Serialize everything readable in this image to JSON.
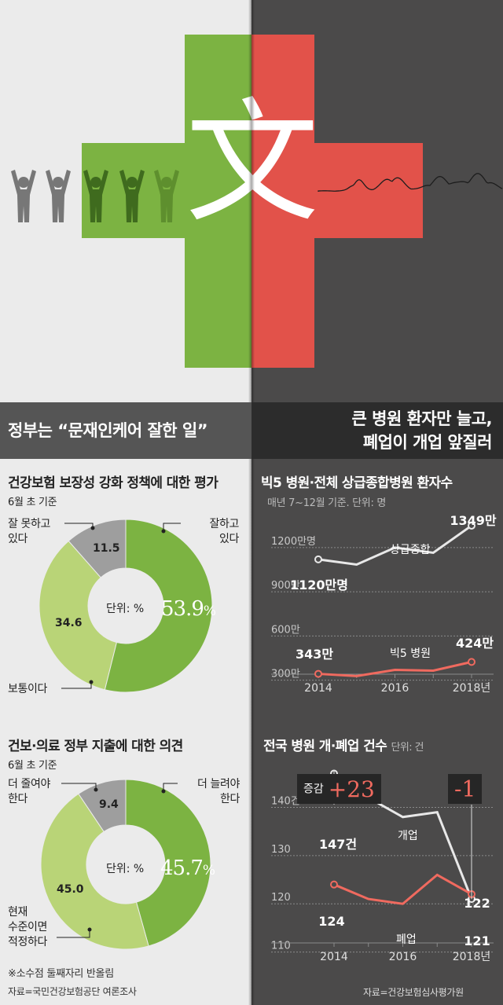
{
  "headline_left": "정부는 “문재인케어 잘한 일”",
  "headline_right": [
    "큰 병원 환자만 늘고,",
    "폐업이 개업 앞질러"
  ],
  "hero_char": "文",
  "colors": {
    "green": "#7cb342",
    "light_green": "#b9d477",
    "gray": "#9e9e9e",
    "red": "#e2524a",
    "line_white": "#e8e8e8",
    "line_red": "#f06a5f"
  },
  "donut1": {
    "title": "건강보험 보장성 강화 정책에 대한 평가",
    "subtitle": "6월 초 기준",
    "unit": "단위: %",
    "big_value": "53.9",
    "big_suffix": "%",
    "segments": [
      {
        "label": "잘하고\n있다",
        "value": 53.9,
        "display": "53.9"
      },
      {
        "label": "보통이다",
        "value": 34.6,
        "display": "34.6"
      },
      {
        "label": "잘 못하고\n있다",
        "value": 11.5,
        "display": "11.5"
      }
    ]
  },
  "donut2": {
    "title": "건보·의료 정부 지출에 대한 의견",
    "subtitle": "6월 초 기준",
    "unit": "단위: %",
    "big_value": "45.7",
    "big_suffix": "%",
    "segments": [
      {
        "label": "더 늘려야\n한다",
        "value": 45.7,
        "display": "45.7"
      },
      {
        "label": "현재\n수준이면\n적정하다",
        "value": 45.0,
        "display": "45.0"
      },
      {
        "label": "더 줄여야\n한다",
        "value": 9.4,
        "display": "9.4"
      }
    ]
  },
  "footnote": "※소수점 둘째자리 반올림",
  "source_left": "자료=국민건강보험공단 여론조사",
  "source_right": "자료=건강보험심사평가원",
  "chart_data": [
    {
      "type": "pie",
      "title": "건강보험 보장성 강화 정책에 대한 평가",
      "subtitle": "6월 초 기준",
      "unit": "단위: %",
      "categories": [
        "잘하고 있다",
        "보통이다",
        "잘 못하고 있다"
      ],
      "values": [
        53.9,
        34.6,
        11.5
      ]
    },
    {
      "type": "pie",
      "title": "건보·의료 정부 지출에 대한 의견",
      "subtitle": "6월 초 기준",
      "unit": "단위: %",
      "categories": [
        "더 늘려야 한다",
        "현재 수준이면 적정하다",
        "더 줄여야 한다"
      ],
      "values": [
        45.7,
        45.0,
        9.4
      ]
    },
    {
      "type": "line",
      "title": "빅5 병원·전체 상급종합병원 환자수",
      "subtitle": "매년 7~12월 기준. 단위: 명",
      "x": [
        2014,
        2015,
        2016,
        2017,
        2018
      ],
      "xticks": [
        "2014",
        "2016",
        "2018년"
      ],
      "yticks": [
        "1200만명",
        "900만",
        "600만",
        "300만"
      ],
      "ylim": [
        250,
        1450
      ],
      "series": [
        {
          "name": "상급종합",
          "values": [
            1120,
            1085,
            1200,
            1165,
            1349
          ],
          "labels": {
            "0": "1120만명",
            "4": "1349만"
          }
        },
        {
          "name": "빅5 병원",
          "values": [
            343,
            328,
            370,
            365,
            424
          ],
          "labels": {
            "0": "343만",
            "4": "424만"
          }
        }
      ]
    },
    {
      "type": "line",
      "title": "전국 병원 개·폐업 건수",
      "unit": "단위: 건",
      "x": [
        2014,
        2015,
        2016,
        2017,
        2018
      ],
      "xticks": [
        "2014",
        "2016",
        "2018년"
      ],
      "yticks": [
        "140건",
        "130",
        "120",
        "110"
      ],
      "ylim": [
        107,
        151
      ],
      "series": [
        {
          "name": "개업",
          "values": [
            147,
            142,
            138,
            139,
            121
          ],
          "labels": {
            "0": "147건",
            "4": "121"
          }
        },
        {
          "name": "폐업",
          "values": [
            124,
            121,
            120,
            126,
            122
          ],
          "labels": {
            "0": "124",
            "4": "122"
          }
        }
      ],
      "annotations": [
        {
          "x": 2014,
          "prefix": "증감",
          "text": "+23"
        },
        {
          "x": 2018,
          "text": "-1"
        }
      ]
    }
  ]
}
